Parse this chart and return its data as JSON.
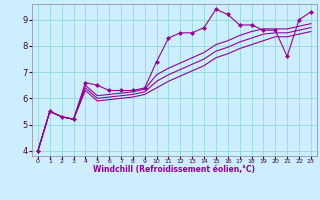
{
  "title": "",
  "xlabel": "Windchill (Refroidissement éolien,°C)",
  "ylabel": "",
  "bg_color": "#cceeff",
  "grid_color": "#99dddd",
  "line_color": "#990099",
  "marker_color": "#990099",
  "xlim": [
    -0.5,
    23.5
  ],
  "ylim": [
    3.8,
    9.6
  ],
  "yticks": [
    4,
    5,
    6,
    7,
    8,
    9
  ],
  "xticks": [
    0,
    1,
    2,
    3,
    4,
    5,
    6,
    7,
    8,
    9,
    10,
    11,
    12,
    13,
    14,
    15,
    16,
    17,
    18,
    19,
    20,
    21,
    22,
    23
  ],
  "xticklabels": [
    "0",
    "1",
    "2",
    "3",
    "4",
    "5",
    "6",
    "7",
    "8",
    "9",
    "10",
    "11",
    "12",
    "13",
    "14",
    "15",
    "16",
    "17",
    "18",
    "19",
    "20",
    "21",
    "22",
    "23"
  ],
  "series": [
    [
      4.0,
      5.5,
      5.3,
      5.2,
      6.6,
      6.5,
      6.3,
      6.3,
      6.3,
      6.4,
      7.4,
      8.3,
      8.5,
      8.5,
      8.7,
      9.4,
      9.2,
      8.8,
      8.8,
      8.6,
      8.6,
      7.6,
      9.0,
      9.3
    ],
    [
      4.0,
      5.5,
      5.3,
      5.2,
      6.5,
      6.1,
      6.15,
      6.2,
      6.25,
      6.35,
      6.9,
      7.15,
      7.35,
      7.55,
      7.75,
      8.05,
      8.2,
      8.4,
      8.55,
      8.65,
      8.65,
      8.65,
      8.75,
      8.85
    ],
    [
      4.0,
      5.5,
      5.3,
      5.2,
      6.4,
      6.0,
      6.05,
      6.1,
      6.15,
      6.25,
      6.65,
      6.9,
      7.1,
      7.3,
      7.5,
      7.8,
      7.95,
      8.15,
      8.3,
      8.45,
      8.5,
      8.5,
      8.6,
      8.7
    ],
    [
      4.0,
      5.5,
      5.3,
      5.2,
      6.3,
      5.9,
      5.95,
      6.0,
      6.05,
      6.15,
      6.4,
      6.65,
      6.85,
      7.05,
      7.25,
      7.55,
      7.7,
      7.9,
      8.05,
      8.2,
      8.35,
      8.35,
      8.45,
      8.55
    ]
  ]
}
